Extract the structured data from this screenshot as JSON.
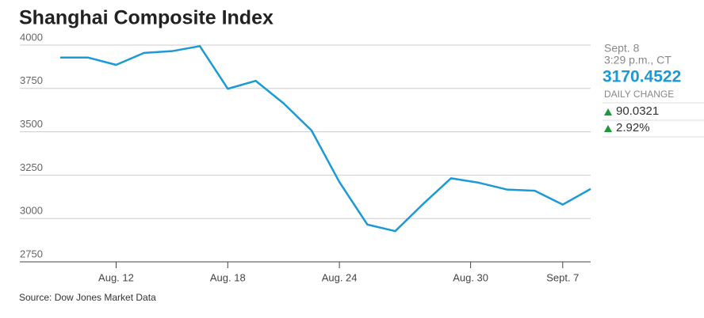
{
  "chart_data": {
    "type": "line",
    "title": "Shanghai Composite Index",
    "x": [
      0,
      1,
      2,
      3,
      4,
      5,
      6,
      7,
      8,
      9,
      10,
      11,
      12,
      13,
      14,
      15,
      16,
      17,
      18,
      19
    ],
    "series": [
      {
        "name": "Shanghai Composite Index",
        "color": "#1a9ad6",
        "values": [
          3928,
          3928,
          3886,
          3955,
          3965,
          3994,
          3748,
          3794,
          3664,
          3508,
          3210,
          2965,
          2927,
          3084,
          3232,
          3206,
          3167,
          3160,
          3080,
          3170.4522
        ]
      }
    ],
    "xlim": [
      -1.45,
      19
    ],
    "xticks": [
      {
        "value": 2,
        "label": "Aug. 12"
      },
      {
        "value": 6,
        "label": "Aug. 18"
      },
      {
        "value": 10,
        "label": "Aug. 24"
      },
      {
        "value": 14.7,
        "label": "Aug. 30"
      },
      {
        "value": 18,
        "label": "Sept. 7"
      }
    ],
    "ylim": [
      2750,
      4000
    ],
    "yticks": [
      2750,
      3000,
      3250,
      3500,
      3750,
      4000
    ],
    "grid": true,
    "source": "Source: Dow Jones Market Data"
  },
  "panel": {
    "date": "Sept. 8",
    "time": "3:29 p.m., CT",
    "price": "3170.4522",
    "change_label": "DAILY CHANGE",
    "change": "90.0321",
    "change_pct": "2.92%"
  }
}
